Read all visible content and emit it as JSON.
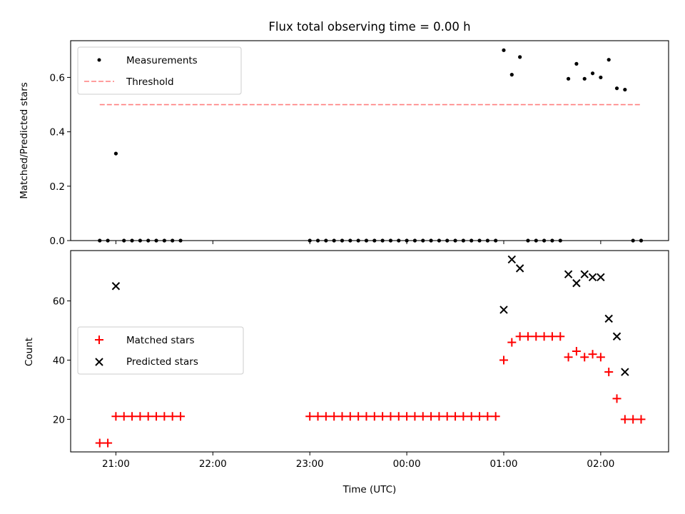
{
  "chart_data": [
    {
      "type": "scatter",
      "title": "Flux total observing time = 0.00 h",
      "xlabel": "",
      "ylabel": "Matched/Predicted stars",
      "xlim": [
        "20:32",
        "02:42"
      ],
      "ylim": [
        0,
        0.735
      ],
      "yticks": [
        0.0,
        0.2,
        0.4,
        0.6
      ],
      "yticklabels": [
        "0.0",
        "0.2",
        "0.4",
        "0.6"
      ],
      "xticks": [
        "21:00",
        "22:00",
        "23:00",
        "00:00",
        "01:00",
        "02:00"
      ],
      "xticklabels": [
        "",
        "",
        "",
        "",
        "",
        ""
      ],
      "legend": {
        "position": "upper-left",
        "entries": [
          "Measurements",
          "Threshold"
        ]
      },
      "series": [
        {
          "name": "Measurements",
          "marker": "dot",
          "color": "#000000",
          "x": [
            "20:50",
            "20:55",
            "21:00",
            "21:05",
            "21:10",
            "21:15",
            "21:20",
            "21:25",
            "21:30",
            "21:35",
            "21:40",
            "23:00",
            "23:05",
            "23:10",
            "23:15",
            "23:20",
            "23:25",
            "23:30",
            "23:35",
            "23:40",
            "23:45",
            "23:50",
            "23:55",
            "00:00",
            "00:05",
            "00:10",
            "00:15",
            "00:20",
            "00:25",
            "00:30",
            "00:35",
            "00:40",
            "00:45",
            "00:50",
            "00:55",
            "01:00",
            "01:05",
            "01:10",
            "01:15",
            "01:20",
            "01:25",
            "01:30",
            "01:35",
            "01:40",
            "01:45",
            "01:50",
            "01:55",
            "02:00",
            "02:05",
            "02:10",
            "02:15",
            "02:20",
            "02:25"
          ],
          "y": [
            0,
            0,
            0.32,
            0,
            0,
            0,
            0,
            0,
            0,
            0,
            0,
            0,
            0,
            0,
            0,
            0,
            0,
            0,
            0,
            0,
            0,
            0,
            0,
            0,
            0,
            0,
            0,
            0,
            0,
            0,
            0,
            0,
            0,
            0,
            0,
            0.7,
            0.61,
            0.675,
            0,
            0,
            0,
            0,
            0,
            0.595,
            0.65,
            0.595,
            0.615,
            0.6,
            0.665,
            0.56,
            0.555,
            0,
            0
          ]
        },
        {
          "name": "Threshold",
          "style": "dashed",
          "color": "#ff7f7f",
          "x": [
            "20:50",
            "02:25"
          ],
          "y": [
            0.5,
            0.5
          ]
        }
      ]
    },
    {
      "type": "scatter",
      "title": "",
      "xlabel": "Time (UTC)",
      "ylabel": "Count",
      "xlim": [
        "20:32",
        "02:42"
      ],
      "ylim": [
        9,
        77
      ],
      "yticks": [
        20,
        40,
        60
      ],
      "yticklabels": [
        "20",
        "40",
        "60"
      ],
      "xticks": [
        "21:00",
        "22:00",
        "23:00",
        "00:00",
        "01:00",
        "02:00"
      ],
      "xticklabels": [
        "21:00",
        "22:00",
        "23:00",
        "00:00",
        "01:00",
        "02:00"
      ],
      "legend": {
        "position": "center-left",
        "entries": [
          "Matched stars",
          "Predicted stars"
        ]
      },
      "series": [
        {
          "name": "Matched stars",
          "marker": "plus",
          "color": "#ff0000",
          "x": [
            "20:50",
            "20:55",
            "21:00",
            "21:05",
            "21:10",
            "21:15",
            "21:20",
            "21:25",
            "21:30",
            "21:35",
            "21:40",
            "23:00",
            "23:05",
            "23:10",
            "23:15",
            "23:20",
            "23:25",
            "23:30",
            "23:35",
            "23:40",
            "23:45",
            "23:50",
            "23:55",
            "00:00",
            "00:05",
            "00:10",
            "00:15",
            "00:20",
            "00:25",
            "00:30",
            "00:35",
            "00:40",
            "00:45",
            "00:50",
            "00:55",
            "01:00",
            "01:05",
            "01:10",
            "01:15",
            "01:20",
            "01:25",
            "01:30",
            "01:35",
            "01:40",
            "01:45",
            "01:50",
            "01:55",
            "02:00",
            "02:05",
            "02:10",
            "02:15",
            "02:20",
            "02:25"
          ],
          "y": [
            12,
            12,
            21,
            21,
            21,
            21,
            21,
            21,
            21,
            21,
            21,
            21,
            21,
            21,
            21,
            21,
            21,
            21,
            21,
            21,
            21,
            21,
            21,
            21,
            21,
            21,
            21,
            21,
            21,
            21,
            21,
            21,
            21,
            21,
            21,
            40,
            46,
            48,
            48,
            48,
            48,
            48,
            48,
            41,
            43,
            41,
            42,
            41,
            36,
            27,
            20,
            20,
            20
          ]
        },
        {
          "name": "Predicted stars",
          "marker": "x",
          "color": "#000000",
          "x": [
            "21:00",
            "01:00",
            "01:05",
            "01:10",
            "01:40",
            "01:45",
            "01:50",
            "01:55",
            "02:00",
            "02:05",
            "02:10",
            "02:15"
          ],
          "y": [
            65,
            57,
            74,
            71,
            69,
            66,
            69,
            68,
            68,
            54,
            48,
            36
          ]
        }
      ]
    }
  ]
}
